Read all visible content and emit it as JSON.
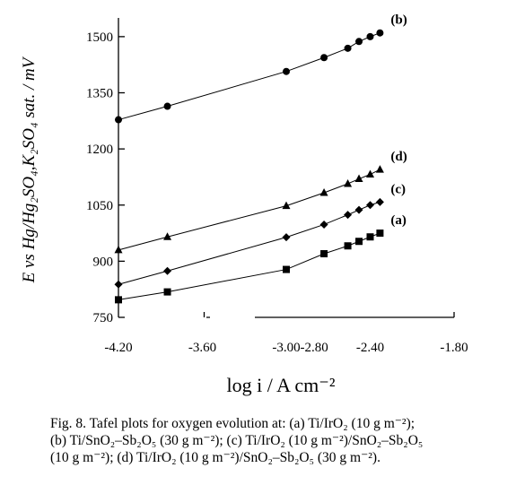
{
  "chart_data": {
    "type": "line",
    "title": "",
    "xlabel": "log i / A cm⁻²",
    "ylabel": "E vs Hg/Hg₂SO₄,K₂SO₄ sat. / mV",
    "xlim": [
      -4.2,
      -1.8
    ],
    "ylim": [
      750,
      1550
    ],
    "xticks": [
      -4.2,
      -3.6,
      -3.0,
      -2.4,
      -1.8
    ],
    "xtick_labels": [
      "-4.20",
      "-3.60",
      "-3.00",
      "-2.40",
      "-1.80"
    ],
    "xticks_minor": [
      -2.8
    ],
    "xtick_minor_labels": [
      "-2.80"
    ],
    "yticks": [
      750,
      900,
      1050,
      1200,
      1350,
      1500
    ],
    "ytick_labels": [
      "750",
      "900",
      "1050",
      "1200",
      "1350",
      "1500"
    ],
    "grid": false,
    "legend": "none",
    "series": [
      {
        "name": "(a)",
        "marker": "square",
        "x": [
          -4.2,
          -3.85,
          -3.0,
          -2.73,
          -2.56,
          -2.48,
          -2.4,
          -2.33
        ],
        "y": [
          797,
          818,
          878,
          920,
          941,
          953,
          965,
          975
        ]
      },
      {
        "name": "(b)",
        "marker": "circle",
        "x": [
          -4.2,
          -3.85,
          -3.0,
          -2.73,
          -2.56,
          -2.48,
          -2.4,
          -2.33
        ],
        "y": [
          1278,
          1314,
          1407,
          1444,
          1469,
          1487,
          1500,
          1510
        ]
      },
      {
        "name": "(c)",
        "marker": "diamond",
        "x": [
          -4.2,
          -3.85,
          -3.0,
          -2.73,
          -2.56,
          -2.48,
          -2.4,
          -2.33
        ],
        "y": [
          838,
          874,
          964,
          998,
          1024,
          1037,
          1050,
          1058
        ]
      },
      {
        "name": "(d)",
        "marker": "triangle",
        "x": [
          -4.2,
          -3.85,
          -3.0,
          -2.73,
          -2.56,
          -2.48,
          -2.4,
          -2.33
        ],
        "y": [
          930,
          965,
          1048,
          1083,
          1107,
          1120,
          1132,
          1145
        ]
      }
    ]
  },
  "caption": {
    "lines": [
      "Fig. 8. Tafel plots for oxygen evolution at: (a) Ti/IrO₂ (10 g m⁻²);",
      "(b) Ti/SnO₂–Sb₂O₅ (30 g m⁻²); (c) Ti/IrO₂ (10 g m⁻²)/SnO₂–Sb₂O₅",
      "(10 g m⁻²); (d) Ti/IrO₂ (10 g m⁻²)/SnO₂–Sb₂O₅ (30 g m⁻²)."
    ]
  }
}
